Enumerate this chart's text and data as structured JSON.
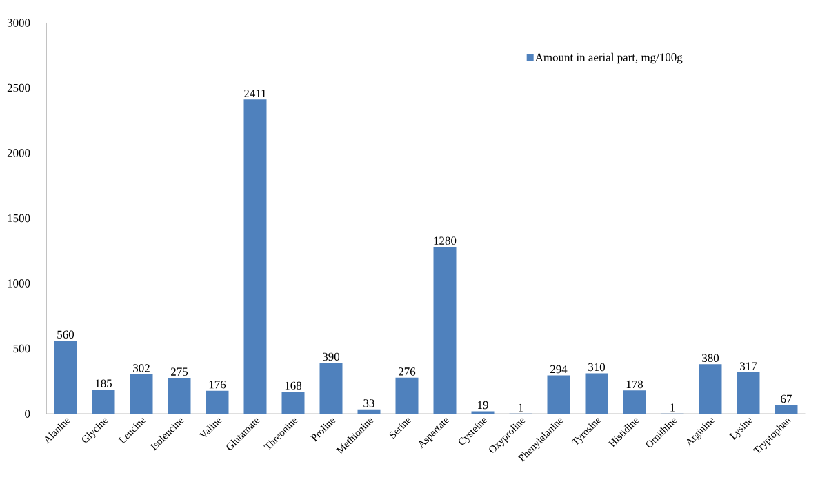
{
  "chart_data": {
    "type": "bar",
    "categories": [
      "Alanine",
      "Glycine",
      "Leucine",
      "Isoleucine",
      "Valine",
      "Glutamate",
      "Threonine",
      "Proline",
      "Methionine",
      "Serine",
      "Aspartate",
      "Cysteine",
      "Oxyproline",
      "Phenylalanine",
      "Tyrosine",
      "Histidine",
      "Ornithine",
      "Arginine",
      "Lysine",
      "Tryptophan"
    ],
    "series": [
      {
        "name": "Amount in aerial part, mg/100g",
        "color": "#4f81bd",
        "values": [
          560,
          185,
          302,
          275,
          176,
          2411,
          168,
          390,
          33,
          276,
          1280,
          19,
          1,
          294,
          310,
          178,
          1,
          380,
          317,
          67
        ]
      }
    ],
    "ylim": [
      0,
      3000
    ],
    "yticks": [
      0,
      500,
      1000,
      1500,
      2000,
      2500,
      3000
    ],
    "data_labels": true,
    "legend": "top right",
    "grid": false
  }
}
